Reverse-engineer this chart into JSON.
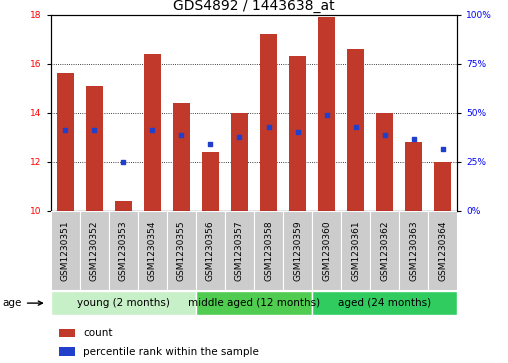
{
  "title": "GDS4892 / 1443638_at",
  "samples": [
    "GSM1230351",
    "GSM1230352",
    "GSM1230353",
    "GSM1230354",
    "GSM1230355",
    "GSM1230356",
    "GSM1230357",
    "GSM1230358",
    "GSM1230359",
    "GSM1230360",
    "GSM1230361",
    "GSM1230362",
    "GSM1230363",
    "GSM1230364"
  ],
  "count_values": [
    15.6,
    15.1,
    10.4,
    16.4,
    14.4,
    12.4,
    14.0,
    17.2,
    16.3,
    17.9,
    16.6,
    14.0,
    12.8,
    12.0
  ],
  "percentile_values": [
    13.3,
    13.3,
    12.0,
    13.3,
    13.1,
    12.7,
    13.0,
    13.4,
    13.2,
    13.9,
    13.4,
    13.1,
    12.9,
    12.5
  ],
  "ylim_left": [
    10,
    18
  ],
  "ylim_right": [
    0,
    100
  ],
  "yticks_left": [
    10,
    12,
    14,
    16,
    18
  ],
  "yticks_right": [
    0,
    25,
    50,
    75,
    100
  ],
  "ytick_labels_right": [
    "0%",
    "25%",
    "50%",
    "75%",
    "100%"
  ],
  "bar_color": "#c0392b",
  "dot_color": "#2040cc",
  "bar_bottom": 10.0,
  "groups": [
    {
      "label": "young (2 months)",
      "start": 0,
      "end": 5,
      "color": "#c8f0c8"
    },
    {
      "label": "middle aged (12 months)",
      "start": 5,
      "end": 9,
      "color": "#50cc50"
    },
    {
      "label": "aged (24 months)",
      "start": 9,
      "end": 14,
      "color": "#30cc60"
    }
  ],
  "group_label": "age",
  "legend_count_label": "count",
  "legend_percentile_label": "percentile rank within the sample",
  "background_color": "#ffffff",
  "bar_width": 0.6,
  "title_fontsize": 10,
  "tick_fontsize": 6.5,
  "group_fontsize": 7.5,
  "legend_fontsize": 7.5,
  "sample_box_color": "#cccccc"
}
